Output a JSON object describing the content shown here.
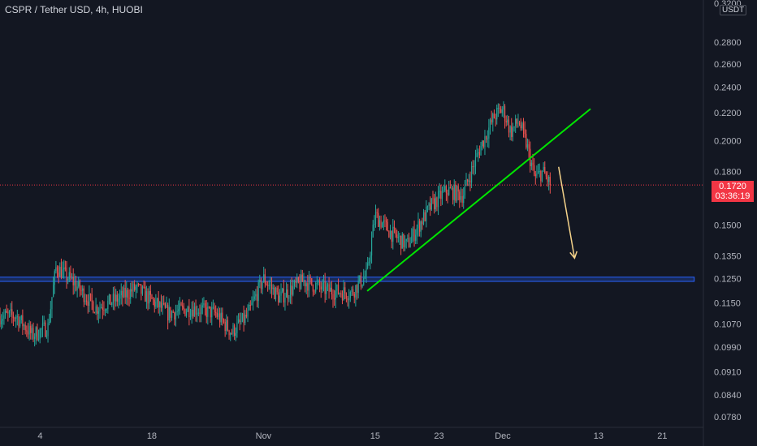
{
  "header": {
    "title": "CSPR / Tether USD, 4h, HUOBI",
    "currency": "USDT"
  },
  "colors": {
    "background": "#131722",
    "up": "#26a69a",
    "down": "#ef5350",
    "trendline": "#00e600",
    "support_zone": "#2962ff",
    "arrow": "#f5d38a",
    "current_price_line": "#f23645"
  },
  "chart_data": {
    "type": "candlestick",
    "title": "CSPR / Tether USD, 4h, HUOBI",
    "y_axis_scale": "log",
    "y_ticks": [
      "0.2800",
      "0.2600",
      "0.2400",
      "0.2200",
      "0.2000",
      "0.1800",
      "0.1500",
      "0.1350",
      "0.1250",
      "0.1150",
      "0.1070",
      "0.0990",
      "0.0910",
      "0.0840",
      "0.0780"
    ],
    "y_top_partial": "0.3200",
    "x_ticks": [
      "4",
      "18",
      "Nov",
      "15",
      "23",
      "Dec",
      "13",
      "21"
    ],
    "current_price": "0.1720",
    "countdown": "03:36:19",
    "ylim": [
      0.074,
      0.32
    ],
    "price_path": [
      {
        "date": "Oct 1",
        "price": 0.11
      },
      {
        "date": "Oct 3",
        "price": 0.103
      },
      {
        "date": "Oct 5",
        "price": 0.106
      },
      {
        "date": "Oct 6",
        "price": 0.13
      },
      {
        "date": "Oct 8",
        "price": 0.124
      },
      {
        "date": "Oct 11",
        "price": 0.113
      },
      {
        "date": "Oct 14",
        "price": 0.117
      },
      {
        "date": "Oct 16",
        "price": 0.121
      },
      {
        "date": "Oct 20",
        "price": 0.111
      },
      {
        "date": "Oct 23",
        "price": 0.113
      },
      {
        "date": "Oct 26",
        "price": 0.111
      },
      {
        "date": "Oct 28",
        "price": 0.104
      },
      {
        "date": "Oct 30",
        "price": 0.11
      },
      {
        "date": "Nov 1",
        "price": 0.125
      },
      {
        "date": "Nov 3",
        "price": 0.117
      },
      {
        "date": "Nov 6",
        "price": 0.124
      },
      {
        "date": "Nov 9",
        "price": 0.12
      },
      {
        "date": "Nov 12",
        "price": 0.119
      },
      {
        "date": "Nov 14",
        "price": 0.127
      },
      {
        "date": "Nov 15",
        "price": 0.155
      },
      {
        "date": "Nov 17",
        "price": 0.146
      },
      {
        "date": "Nov 19",
        "price": 0.14
      },
      {
        "date": "Nov 22",
        "price": 0.16
      },
      {
        "date": "Nov 24",
        "price": 0.169
      },
      {
        "date": "Nov 26",
        "price": 0.166
      },
      {
        "date": "Nov 28",
        "price": 0.193
      },
      {
        "date": "Nov 30",
        "price": 0.218
      },
      {
        "date": "Dec 1",
        "price": 0.223
      },
      {
        "date": "Dec 2",
        "price": 0.206
      },
      {
        "date": "Dec 3",
        "price": 0.214
      },
      {
        "date": "Dec 4",
        "price": 0.197
      },
      {
        "date": "Dec 5",
        "price": 0.176
      },
      {
        "date": "Dec 6",
        "price": 0.18
      },
      {
        "date": "Dec 7",
        "price": 0.172
      }
    ],
    "support_zone": {
      "low": 0.1238,
      "high": 0.1256,
      "from": "Oct 1",
      "to": "Dec 25"
    },
    "trendline": [
      {
        "date": "Nov 14",
        "price": 0.1198
      },
      {
        "date": "Dec 12",
        "price": 0.223
      }
    ],
    "projection_arrow": [
      {
        "date": "Dec 8",
        "price": 0.183
      },
      {
        "date": "Dec 10",
        "price": 0.134
      }
    ]
  }
}
